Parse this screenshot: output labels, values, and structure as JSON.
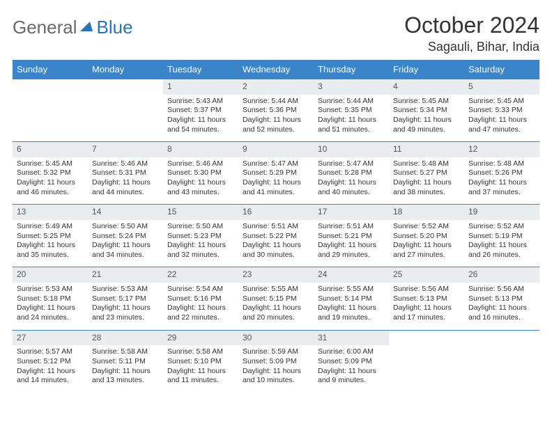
{
  "logo": {
    "general": "General",
    "blue": "Blue"
  },
  "header": {
    "month_title": "October 2024",
    "location": "Sagauli, Bihar, India"
  },
  "colors": {
    "header_bg": "#3a85c9",
    "daynum_bg": "#e9edef",
    "text": "#333333",
    "logo_gray": "#6a6a6a",
    "logo_blue": "#2a74b8"
  },
  "day_headers": [
    "Sunday",
    "Monday",
    "Tuesday",
    "Wednesday",
    "Thursday",
    "Friday",
    "Saturday"
  ],
  "weeks": [
    {
      "days": [
        null,
        null,
        {
          "n": "1",
          "sr": "Sunrise: 5:43 AM",
          "ss": "Sunset: 5:37 PM",
          "d1": "Daylight: 11 hours",
          "d2": "and 54 minutes."
        },
        {
          "n": "2",
          "sr": "Sunrise: 5:44 AM",
          "ss": "Sunset: 5:36 PM",
          "d1": "Daylight: 11 hours",
          "d2": "and 52 minutes."
        },
        {
          "n": "3",
          "sr": "Sunrise: 5:44 AM",
          "ss": "Sunset: 5:35 PM",
          "d1": "Daylight: 11 hours",
          "d2": "and 51 minutes."
        },
        {
          "n": "4",
          "sr": "Sunrise: 5:45 AM",
          "ss": "Sunset: 5:34 PM",
          "d1": "Daylight: 11 hours",
          "d2": "and 49 minutes."
        },
        {
          "n": "5",
          "sr": "Sunrise: 5:45 AM",
          "ss": "Sunset: 5:33 PM",
          "d1": "Daylight: 11 hours",
          "d2": "and 47 minutes."
        }
      ]
    },
    {
      "days": [
        {
          "n": "6",
          "sr": "Sunrise: 5:45 AM",
          "ss": "Sunset: 5:32 PM",
          "d1": "Daylight: 11 hours",
          "d2": "and 46 minutes."
        },
        {
          "n": "7",
          "sr": "Sunrise: 5:46 AM",
          "ss": "Sunset: 5:31 PM",
          "d1": "Daylight: 11 hours",
          "d2": "and 44 minutes."
        },
        {
          "n": "8",
          "sr": "Sunrise: 5:46 AM",
          "ss": "Sunset: 5:30 PM",
          "d1": "Daylight: 11 hours",
          "d2": "and 43 minutes."
        },
        {
          "n": "9",
          "sr": "Sunrise: 5:47 AM",
          "ss": "Sunset: 5:29 PM",
          "d1": "Daylight: 11 hours",
          "d2": "and 41 minutes."
        },
        {
          "n": "10",
          "sr": "Sunrise: 5:47 AM",
          "ss": "Sunset: 5:28 PM",
          "d1": "Daylight: 11 hours",
          "d2": "and 40 minutes."
        },
        {
          "n": "11",
          "sr": "Sunrise: 5:48 AM",
          "ss": "Sunset: 5:27 PM",
          "d1": "Daylight: 11 hours",
          "d2": "and 38 minutes."
        },
        {
          "n": "12",
          "sr": "Sunrise: 5:48 AM",
          "ss": "Sunset: 5:26 PM",
          "d1": "Daylight: 11 hours",
          "d2": "and 37 minutes."
        }
      ]
    },
    {
      "days": [
        {
          "n": "13",
          "sr": "Sunrise: 5:49 AM",
          "ss": "Sunset: 5:25 PM",
          "d1": "Daylight: 11 hours",
          "d2": "and 35 minutes."
        },
        {
          "n": "14",
          "sr": "Sunrise: 5:50 AM",
          "ss": "Sunset: 5:24 PM",
          "d1": "Daylight: 11 hours",
          "d2": "and 34 minutes."
        },
        {
          "n": "15",
          "sr": "Sunrise: 5:50 AM",
          "ss": "Sunset: 5:23 PM",
          "d1": "Daylight: 11 hours",
          "d2": "and 32 minutes."
        },
        {
          "n": "16",
          "sr": "Sunrise: 5:51 AM",
          "ss": "Sunset: 5:22 PM",
          "d1": "Daylight: 11 hours",
          "d2": "and 30 minutes."
        },
        {
          "n": "17",
          "sr": "Sunrise: 5:51 AM",
          "ss": "Sunset: 5:21 PM",
          "d1": "Daylight: 11 hours",
          "d2": "and 29 minutes."
        },
        {
          "n": "18",
          "sr": "Sunrise: 5:52 AM",
          "ss": "Sunset: 5:20 PM",
          "d1": "Daylight: 11 hours",
          "d2": "and 27 minutes."
        },
        {
          "n": "19",
          "sr": "Sunrise: 5:52 AM",
          "ss": "Sunset: 5:19 PM",
          "d1": "Daylight: 11 hours",
          "d2": "and 26 minutes."
        }
      ]
    },
    {
      "days": [
        {
          "n": "20",
          "sr": "Sunrise: 5:53 AM",
          "ss": "Sunset: 5:18 PM",
          "d1": "Daylight: 11 hours",
          "d2": "and 24 minutes."
        },
        {
          "n": "21",
          "sr": "Sunrise: 5:53 AM",
          "ss": "Sunset: 5:17 PM",
          "d1": "Daylight: 11 hours",
          "d2": "and 23 minutes."
        },
        {
          "n": "22",
          "sr": "Sunrise: 5:54 AM",
          "ss": "Sunset: 5:16 PM",
          "d1": "Daylight: 11 hours",
          "d2": "and 22 minutes."
        },
        {
          "n": "23",
          "sr": "Sunrise: 5:55 AM",
          "ss": "Sunset: 5:15 PM",
          "d1": "Daylight: 11 hours",
          "d2": "and 20 minutes."
        },
        {
          "n": "24",
          "sr": "Sunrise: 5:55 AM",
          "ss": "Sunset: 5:14 PM",
          "d1": "Daylight: 11 hours",
          "d2": "and 19 minutes."
        },
        {
          "n": "25",
          "sr": "Sunrise: 5:56 AM",
          "ss": "Sunset: 5:13 PM",
          "d1": "Daylight: 11 hours",
          "d2": "and 17 minutes."
        },
        {
          "n": "26",
          "sr": "Sunrise: 5:56 AM",
          "ss": "Sunset: 5:13 PM",
          "d1": "Daylight: 11 hours",
          "d2": "and 16 minutes."
        }
      ]
    },
    {
      "days": [
        {
          "n": "27",
          "sr": "Sunrise: 5:57 AM",
          "ss": "Sunset: 5:12 PM",
          "d1": "Daylight: 11 hours",
          "d2": "and 14 minutes."
        },
        {
          "n": "28",
          "sr": "Sunrise: 5:58 AM",
          "ss": "Sunset: 5:11 PM",
          "d1": "Daylight: 11 hours",
          "d2": "and 13 minutes."
        },
        {
          "n": "29",
          "sr": "Sunrise: 5:58 AM",
          "ss": "Sunset: 5:10 PM",
          "d1": "Daylight: 11 hours",
          "d2": "and 11 minutes."
        },
        {
          "n": "30",
          "sr": "Sunrise: 5:59 AM",
          "ss": "Sunset: 5:09 PM",
          "d1": "Daylight: 11 hours",
          "d2": "and 10 minutes."
        },
        {
          "n": "31",
          "sr": "Sunrise: 6:00 AM",
          "ss": "Sunset: 5:09 PM",
          "d1": "Daylight: 11 hours",
          "d2": "and 9 minutes."
        },
        null,
        null
      ]
    }
  ]
}
